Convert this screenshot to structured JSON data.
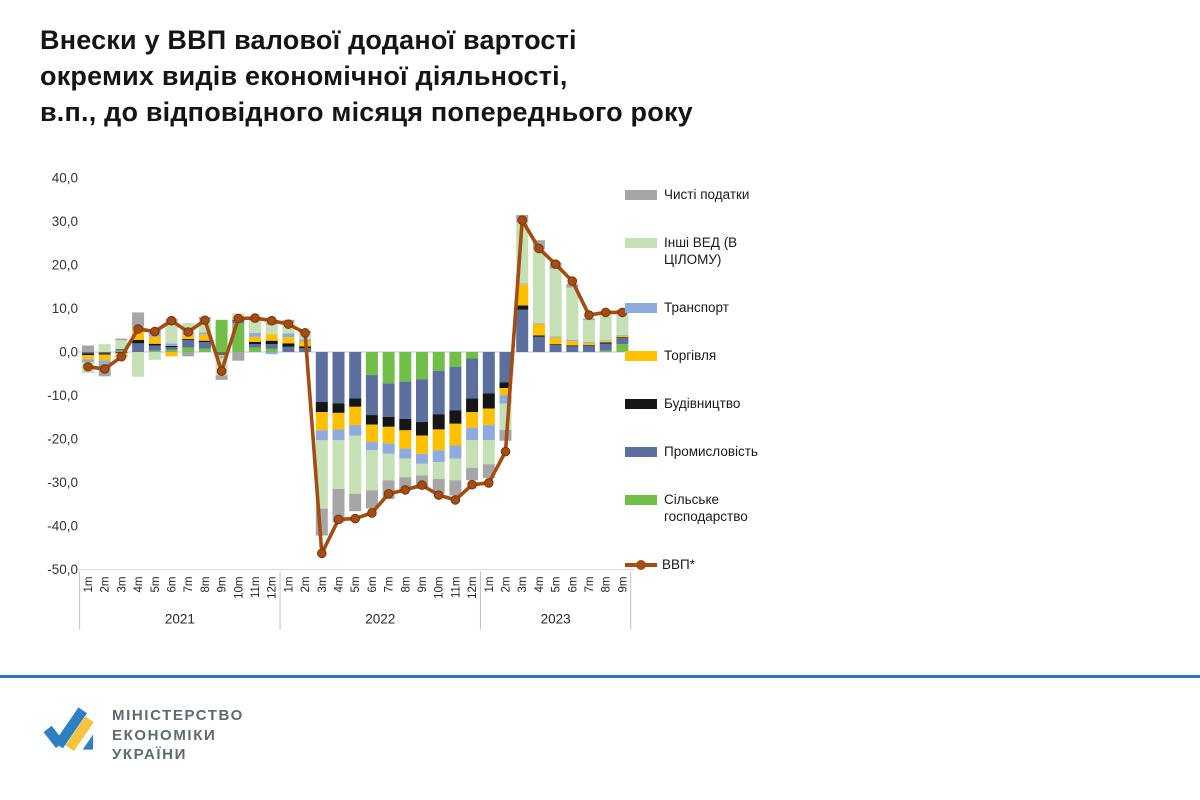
{
  "title": {
    "lines": [
      "Внески у ВВП валової доданої вартості",
      "окремих видів економічної діяльності,",
      "в.п., до відповідного місяця попереднього року"
    ]
  },
  "chart_data": {
    "type": "stacked-bar-with-line",
    "x_labels": [
      "1m",
      "2m",
      "3m",
      "4m",
      "5m",
      "6m",
      "7m",
      "8m",
      "9m",
      "10m",
      "11m",
      "12m",
      "1m",
      "2m",
      "3m",
      "4m",
      "5m",
      "6m",
      "7m",
      "8m",
      "9m",
      "10m",
      "11m",
      "12m",
      "1m",
      "2m",
      "3m",
      "4m",
      "5m",
      "6m",
      "7m",
      "8m",
      "9m"
    ],
    "year_groups": [
      {
        "label": "2021",
        "months": 12
      },
      {
        "label": "2022",
        "months": 12
      },
      {
        "label": "2023",
        "months": 9
      }
    ],
    "y_tick_labels": [
      "40,0",
      "30,0",
      "20,0",
      "10,0",
      "0,0",
      "-10,0",
      "-20,0",
      "-30,0",
      "-40,0",
      "-50,0"
    ],
    "y_tick_values": [
      40,
      30,
      20,
      10,
      0,
      -10,
      -20,
      -30,
      -40,
      -50
    ],
    "ylim": [
      -50,
      40
    ],
    "grid": "zero-line-and-bottom-axis-only",
    "legend_position": "right",
    "series": [
      {
        "id": "silske",
        "name": "Сільське господарство",
        "color": "#71BE48",
        "values": [
          0,
          0,
          0.3,
          0,
          0.3,
          0.5,
          1.0,
          0.8,
          7.4,
          6.6,
          1.0,
          0.8,
          0,
          0,
          0,
          0,
          0,
          -5.3,
          -7.2,
          -6.8,
          -6.3,
          -4.3,
          -3.4,
          -1.5,
          0,
          0,
          0,
          0,
          0,
          0,
          0,
          0.3,
          1.8
        ]
      },
      {
        "id": "promyslovist",
        "name": "Промисловість",
        "color": "#5B709F",
        "values": [
          -0.3,
          -0.3,
          0.4,
          2.0,
          1.2,
          0.6,
          1.8,
          1.5,
          -0.4,
          0.5,
          0.8,
          1.0,
          1.2,
          0.9,
          -11.5,
          -11.8,
          -10.7,
          -9.2,
          -7.7,
          -8.6,
          -9.8,
          -10.0,
          -10.0,
          -9.2,
          -9.5,
          -7.0,
          9.7,
          3.5,
          1.6,
          1.3,
          1.5,
          1.6,
          1.4
        ]
      },
      {
        "id": "budivnytstvo",
        "name": "Будівництво",
        "color": "#161616",
        "values": [
          -0.4,
          -0.3,
          -0.2,
          0.8,
          0.4,
          0.3,
          0.2,
          0.3,
          -0.2,
          0.2,
          0.5,
          0.8,
          0.8,
          0.4,
          -2.3,
          -2.2,
          -1.9,
          -2.2,
          -2.3,
          -2.6,
          -3.1,
          -3.5,
          -3.1,
          -3.1,
          -3.5,
          -1.3,
          1.0,
          0.3,
          0.2,
          0.2,
          0.1,
          0.3,
          0.2
        ]
      },
      {
        "id": "torhivlia",
        "name": "Торгівля",
        "color": "#FFC000",
        "values": [
          -1.0,
          -1.3,
          -0.6,
          2.7,
          1.6,
          -1.0,
          1.0,
          1.4,
          -0.4,
          0.5,
          1.2,
          1.5,
          1.4,
          1.1,
          -4.2,
          -3.8,
          -4.2,
          -4.0,
          -3.8,
          -4.2,
          -4.2,
          -4.8,
          -5.0,
          -3.6,
          -3.8,
          -1.6,
          4.9,
          2.7,
          1.5,
          1.0,
          0.5,
          0.3,
          0.3
        ]
      },
      {
        "id": "transport",
        "name": "Транспорт",
        "color": "#8FAADC",
        "values": [
          -0.6,
          -0.8,
          -0.4,
          0.5,
          0.7,
          0.6,
          0.6,
          0.5,
          -0.4,
          0.3,
          0.9,
          -0.5,
          0.9,
          0.5,
          -2.3,
          -2.5,
          -2.4,
          -1.9,
          -2.4,
          -2.3,
          -2.3,
          -2.7,
          -3.0,
          -2.9,
          -3.5,
          -2.0,
          0.2,
          0.2,
          0.3,
          0.3,
          0.2,
          0.2,
          0.2
        ]
      },
      {
        "id": "inshi-ved",
        "name": "Інші ВЕД (В ЦІЛОМУ)",
        "color": "#C5E0B4",
        "values": [
          -2.5,
          1.8,
          2.0,
          -5.7,
          -1.8,
          4.8,
          2.1,
          3.0,
          -4.0,
          0.8,
          2.8,
          2.2,
          2.3,
          1.5,
          -15.7,
          -11.2,
          -13.4,
          -9.2,
          -6.1,
          -4.3,
          -2.7,
          -3.9,
          -5.0,
          -6.3,
          -5.5,
          -6.0,
          14.0,
          17.0,
          15.5,
          12.0,
          5.0,
          6.0,
          5.5
        ]
      },
      {
        "id": "chysti-podatky",
        "name": "Чисті податки",
        "color": "#A6A6A6",
        "values": [
          1.5,
          -2.9,
          0.4,
          3.1,
          0.8,
          0.8,
          -1.0,
          0.5,
          -1.0,
          -2.0,
          0.8,
          0.5,
          0.8,
          0.5,
          -6.2,
          -7.7,
          -4.0,
          -4.2,
          -4.3,
          -3.0,
          -3.1,
          -3.4,
          -3.5,
          -2.9,
          -3.2,
          -2.5,
          1.7,
          2.0,
          1.5,
          0.8,
          0.4,
          0.4,
          0.3
        ]
      }
    ],
    "line_series": {
      "id": "vvp",
      "name": "ВВП*",
      "color": "#A34D14",
      "marker_stroke": "#7A3406",
      "values": [
        -3.4,
        -3.9,
        -1.1,
        5.3,
        4.7,
        7.2,
        4.6,
        7.3,
        -4.4,
        7.7,
        7.8,
        7.2,
        6.4,
        4.4,
        -46.3,
        -38.5,
        -38.3,
        -37.0,
        -32.6,
        -31.7,
        -30.6,
        -32.9,
        -34.0,
        -30.5,
        -30.1,
        -22.9,
        30.3,
        23.8,
        20.2,
        16.3,
        8.5,
        9.1,
        9.1
      ]
    },
    "legend": [
      {
        "label": "Чисті податки",
        "color": "#A6A6A6",
        "type": "bar"
      },
      {
        "label": "Інші ВЕД (В ЦІЛОМУ)",
        "color": "#C5E0B4",
        "type": "bar"
      },
      {
        "label": "Транспорт",
        "color": "#8FAADC",
        "type": "bar"
      },
      {
        "label": "Торгівля",
        "color": "#FFC000",
        "type": "bar"
      },
      {
        "label": "Будівництво",
        "color": "#161616",
        "type": "bar"
      },
      {
        "label": "Промисловість",
        "color": "#5B709F",
        "type": "bar"
      },
      {
        "label": "Сільське господарство",
        "color": "#71BE48",
        "type": "bar"
      },
      {
        "label": "ВВП*",
        "color": "#A34D14",
        "type": "line"
      }
    ],
    "axis_colors": {
      "zero_line": "#BDD3EA",
      "bottom_axis": "#D9D9D9",
      "separator": "#BFBFBF"
    }
  },
  "footer": {
    "ministry_lines": [
      "МІНІСТЕРСТВО",
      "ЕКОНОМІКИ",
      "УКРАЇНИ"
    ],
    "divider_color": "#2E75B6",
    "logo_colors": {
      "blue": "#2F80C3",
      "yellow": "#F5C540"
    }
  }
}
